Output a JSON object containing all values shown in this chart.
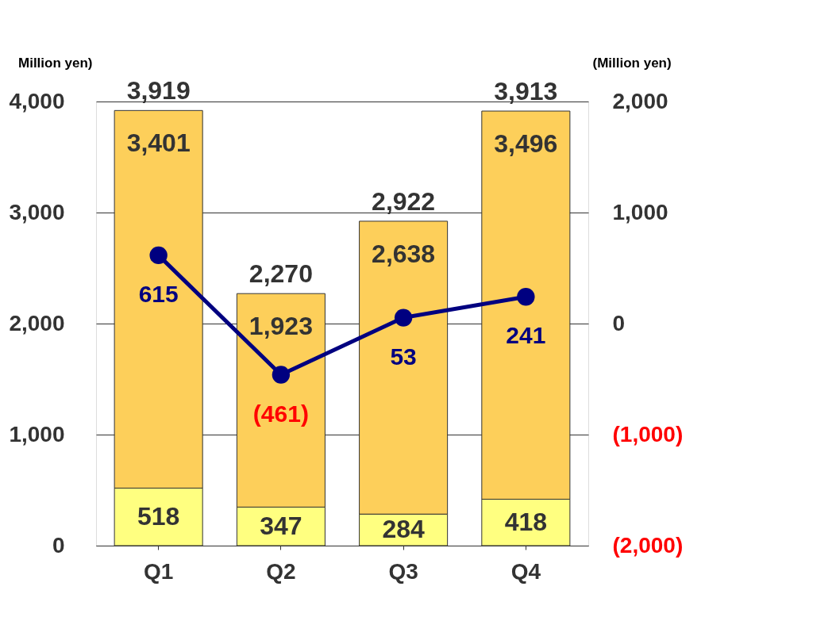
{
  "chart_data": {
    "type": "bar",
    "stacked": true,
    "categories": [
      "Q1",
      "Q2",
      "Q3",
      "Q4"
    ],
    "ylabel": "Million yen)",
    "y2label": "(Million yen)",
    "series": [
      {
        "color": "#ffff80",
        "values": [
          518,
          347,
          284,
          418
        ],
        "value_labels": [
          "518",
          "347",
          "284",
          "418"
        ]
      },
      {
        "color": "#fdcf5a",
        "values": [
          3401,
          1923,
          2638,
          3496
        ],
        "value_labels": [
          "3,401",
          "1,923",
          "2,638",
          "3,496"
        ]
      },
      {
        "type": "line",
        "axis": "y2",
        "color": "#000080",
        "values": [
          615,
          -461,
          53,
          241
        ],
        "value_labels": [
          "615",
          "(461)",
          "53",
          "241"
        ]
      }
    ],
    "totals": [
      "3,919",
      "2,270",
      "2,922",
      "3,913"
    ],
    "ylim": [
      0,
      4000
    ],
    "yticks": [
      {
        "value": 0,
        "label": "0"
      },
      {
        "value": 1000,
        "label": "1,000"
      },
      {
        "value": 2000,
        "label": "2,000"
      },
      {
        "value": 3000,
        "label": "3,000"
      },
      {
        "value": 4000,
        "label": "4,000"
      }
    ],
    "y2lim": [
      -2000,
      2000
    ],
    "y2ticks": [
      {
        "value": -2000,
        "label": "(2,000)"
      },
      {
        "value": -1000,
        "label": "(1,000)"
      },
      {
        "value": 0,
        "label": "0"
      },
      {
        "value": 1000,
        "label": "1,000"
      },
      {
        "value": 2000,
        "label": "2,000"
      }
    ],
    "grid": "y",
    "marker": "circle",
    "line_style": "solid"
  }
}
